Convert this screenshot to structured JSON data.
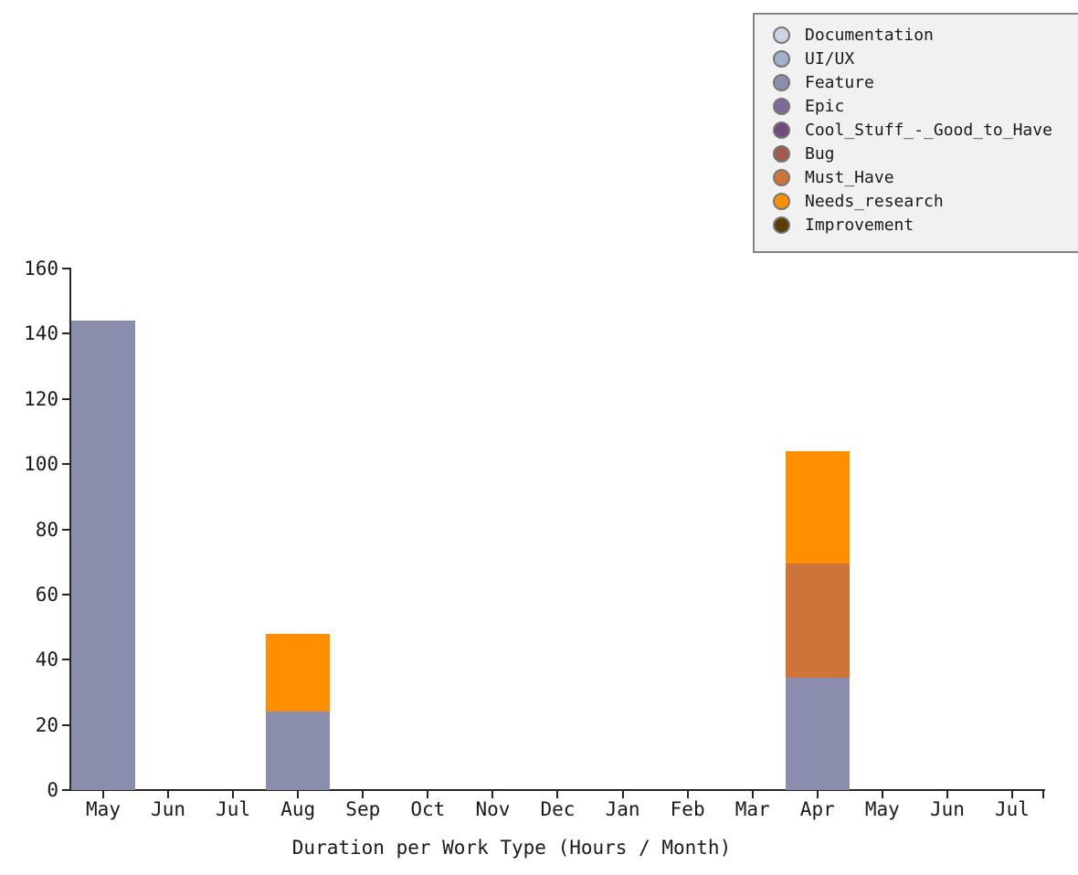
{
  "chart_data": {
    "type": "bar",
    "stacked": true,
    "title": "Duration per Work Type (Hours / Month)",
    "categories": [
      "May",
      "Jun",
      "Jul",
      "Aug",
      "Sep",
      "Oct",
      "Nov",
      "Dec",
      "Jan",
      "Feb",
      "Mar",
      "Apr",
      "May",
      "Jun",
      "Jul"
    ],
    "series": [
      {
        "name": "Documentation",
        "color": "#ccd4e5",
        "values": [
          0,
          0,
          0,
          0,
          0,
          0,
          0,
          0,
          0,
          0,
          0,
          0,
          0,
          0,
          0
        ]
      },
      {
        "name": "UI/UX",
        "color": "#a0b1cb",
        "values": [
          0,
          0,
          0,
          0,
          0,
          0,
          0,
          0,
          0,
          0,
          0,
          0,
          0,
          0,
          0
        ]
      },
      {
        "name": "Feature",
        "color": "#8b8dac",
        "values": [
          144,
          0,
          0,
          24,
          0,
          0,
          0,
          0,
          0,
          0,
          0,
          34.5,
          0,
          0,
          0
        ]
      },
      {
        "name": "Epic",
        "color": "#80689b",
        "values": [
          0,
          0,
          0,
          0,
          0,
          0,
          0,
          0,
          0,
          0,
          0,
          0,
          0,
          0,
          0
        ]
      },
      {
        "name": "Cool_Stuff_-_Good_to_Have",
        "color": "#70497d",
        "values": [
          0,
          0,
          0,
          0,
          0,
          0,
          0,
          0,
          0,
          0,
          0,
          0,
          0,
          0,
          0
        ]
      },
      {
        "name": "Bug",
        "color": "#a35a51",
        "values": [
          0,
          0,
          0,
          0,
          0,
          0,
          0,
          0,
          0,
          0,
          0,
          0,
          0,
          0,
          0
        ]
      },
      {
        "name": "Must_Have",
        "color": "#cc7439",
        "values": [
          0,
          0,
          0,
          0,
          0,
          0,
          0,
          0,
          0,
          0,
          0,
          35,
          0,
          0,
          0
        ]
      },
      {
        "name": "Needs_research",
        "color": "#ff8f00",
        "values": [
          0,
          0,
          0,
          24,
          0,
          0,
          0,
          0,
          0,
          0,
          0,
          34.5,
          0,
          0,
          0
        ]
      },
      {
        "name": "Improvement",
        "color": "#5e3d05",
        "values": [
          0,
          0,
          0,
          0,
          0,
          0,
          0,
          0,
          0,
          0,
          0,
          0,
          0,
          0,
          0
        ]
      }
    ],
    "ylim": [
      0,
      160
    ],
    "yticks": [
      0,
      20,
      40,
      60,
      80,
      100,
      120,
      140,
      160
    ],
    "xlabel": "",
    "ylabel": "",
    "legend_position": "upper right",
    "grid": false,
    "axis_color": "#262626",
    "legend_background": "#f1f1f2",
    "legend_border_color": "#848484"
  }
}
